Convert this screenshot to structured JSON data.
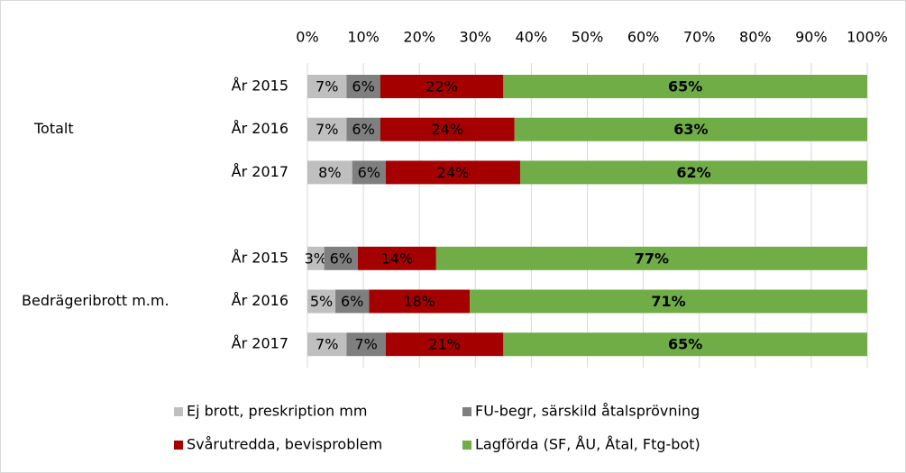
{
  "chart_data": {
    "type": "stacked_barh",
    "groups": [
      "Totalt",
      "Bedrägeribrott m.m."
    ],
    "categories": [
      "År 2015",
      "År 2016",
      "År 2017",
      null,
      "År 2015",
      "År 2016",
      "År 2017"
    ],
    "series": [
      {
        "name": "Ej brott, preskription mm",
        "color": "#bfbfbf",
        "label_color": "#404040",
        "values": [
          7,
          7,
          8,
          null,
          3,
          5,
          7
        ],
        "value_labels": [
          "7%",
          "7%",
          "8%",
          null,
          "3%",
          "5%",
          "7%"
        ]
      },
      {
        "name": "FU-begr, särskild åtalsprövning",
        "color": "#7f7f7f",
        "label_color": "#ffffff",
        "values": [
          6,
          6,
          6,
          null,
          6,
          6,
          7
        ],
        "value_labels": [
          "6%",
          "6%",
          "6%",
          null,
          "6%",
          "6%",
          "7%"
        ]
      },
      {
        "name": "Svårutredda, bevisproblem",
        "color": "#a50000",
        "label_color": "#ffffff",
        "values": [
          22,
          24,
          24,
          null,
          14,
          18,
          21
        ],
        "value_labels": [
          "22%",
          "24%",
          "24%",
          null,
          "14%",
          "18%",
          "21%"
        ]
      },
      {
        "name": "Lagförda (SF, ÅU, Åtal, Ftg-bot)",
        "color": "#70ad47",
        "label_color": "#ffffff",
        "values": [
          65,
          63,
          62,
          null,
          77,
          71,
          65
        ],
        "value_labels": [
          "65%",
          "63%",
          "62%",
          null,
          "77%",
          "71%",
          "65%"
        ]
      }
    ],
    "xlim": [
      0,
      100
    ],
    "xticks": [
      {
        "value": 0,
        "label": "0%"
      },
      {
        "value": 10,
        "label": "10%"
      },
      {
        "value": 20,
        "label": "20%"
      },
      {
        "value": 30,
        "label": "30%"
      },
      {
        "value": 40,
        "label": "40%"
      },
      {
        "value": 50,
        "label": "50%"
      },
      {
        "value": 60,
        "label": "60%"
      },
      {
        "value": 70,
        "label": "70%"
      },
      {
        "value": 80,
        "label": "80%"
      },
      {
        "value": 90,
        "label": "90%"
      },
      {
        "value": 100,
        "label": "100%"
      }
    ],
    "grid": true
  }
}
